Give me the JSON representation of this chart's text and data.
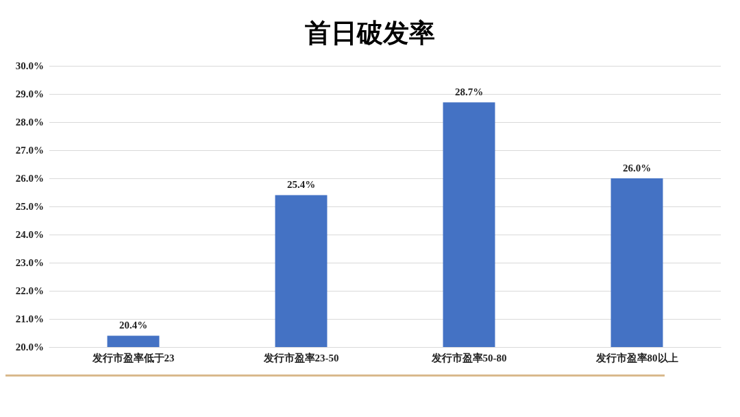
{
  "chart_data": {
    "type": "bar",
    "title": "首日破发率",
    "categories": [
      "发行市盈率低于23",
      "发行市盈率23-50",
      "发行市盈率50-80",
      "发行市盈率80以上"
    ],
    "values": [
      20.4,
      25.4,
      28.7,
      26.0
    ],
    "value_labels": [
      "20.4%",
      "25.4%",
      "28.7%",
      "26.0%"
    ],
    "color": "#4472c4",
    "ylim": [
      20,
      30
    ],
    "yticks": [
      {
        "value": 20,
        "label": "20.0%"
      },
      {
        "value": 21,
        "label": "21.0%"
      },
      {
        "value": 22,
        "label": "22.0%"
      },
      {
        "value": 23,
        "label": "23.0%"
      },
      {
        "value": 24,
        "label": "24.0%"
      },
      {
        "value": 25,
        "label": "25.0%"
      },
      {
        "value": 26,
        "label": "26.0%"
      },
      {
        "value": 27,
        "label": "27.0%"
      },
      {
        "value": 28,
        "label": "28.0%"
      },
      {
        "value": 29,
        "label": "29.0%"
      },
      {
        "value": 30,
        "label": "30.0%"
      }
    ],
    "grid": "y"
  }
}
